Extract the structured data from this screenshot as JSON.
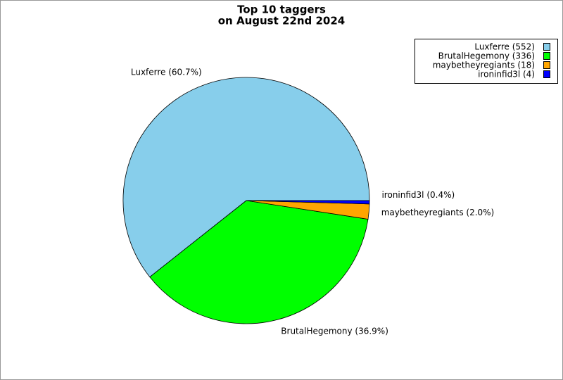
{
  "chart_data": {
    "type": "pie",
    "title": [
      "Top 10 taggers",
      "on August 22nd 2024"
    ],
    "categories": [
      "Luxferre (552)",
      "BrutalHegemony (336)",
      "maybetheyregiants (18)",
      "ironinfid3l (4)"
    ],
    "values": [
      552,
      336,
      18,
      4
    ],
    "slice_labels": [
      "Luxferre (60.7%)",
      "BrutalHegemony (36.9%)",
      "maybetheyregiants (2.0%)",
      "ironinfid3l (0.4%)"
    ],
    "colors": [
      "#87ceeb",
      "#00ff00",
      "#ffa500",
      "#0000ff"
    ],
    "legend": "upper right"
  }
}
